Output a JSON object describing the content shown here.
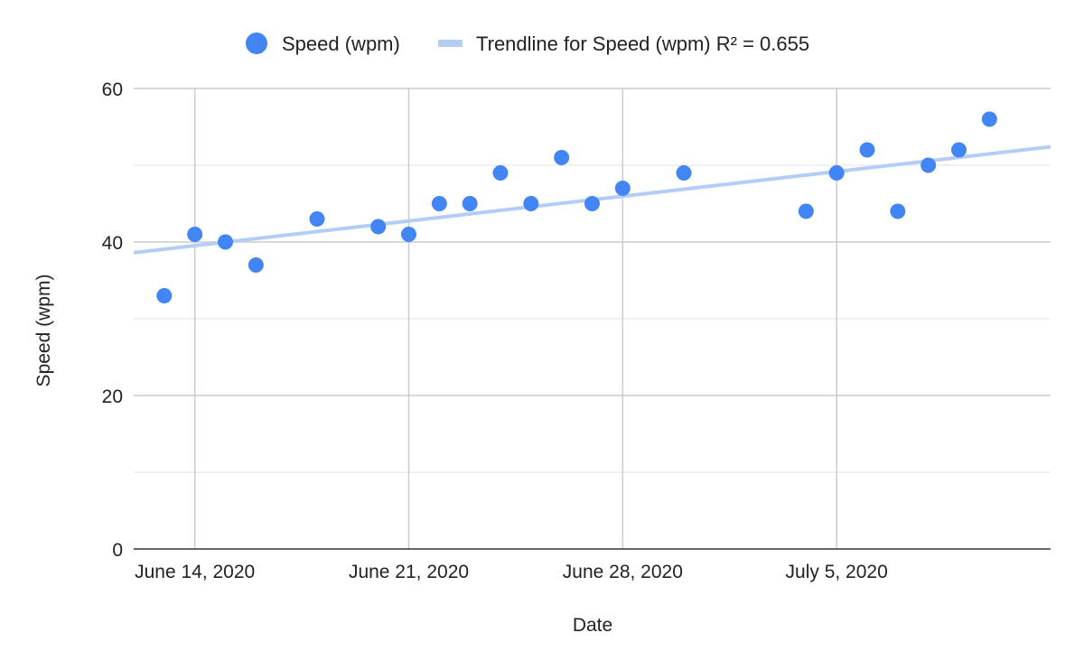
{
  "chart_data": {
    "type": "scatter",
    "xlabel": "Date",
    "ylabel": "Speed (wpm)",
    "ylim": [
      0,
      60
    ],
    "yticks": [
      0,
      20,
      40,
      60
    ],
    "xlim": [
      "2020-06-12",
      "2020-07-12"
    ],
    "xticks": [
      {
        "date": "2020-06-14",
        "label": "June 14, 2020"
      },
      {
        "date": "2020-06-21",
        "label": "June 21, 2020"
      },
      {
        "date": "2020-06-28",
        "label": "June 28, 2020"
      },
      {
        "date": "2020-07-05",
        "label": "July 5, 2020"
      }
    ],
    "grid": true,
    "legend_position": "top",
    "series": [
      {
        "name": "Speed (wpm)",
        "color": "#4285f4",
        "points": [
          {
            "x": "2020-06-13",
            "y": 33
          },
          {
            "x": "2020-06-14",
            "y": 41
          },
          {
            "x": "2020-06-15",
            "y": 40
          },
          {
            "x": "2020-06-16",
            "y": 37
          },
          {
            "x": "2020-06-18",
            "y": 43
          },
          {
            "x": "2020-06-20",
            "y": 42
          },
          {
            "x": "2020-06-21",
            "y": 41
          },
          {
            "x": "2020-06-22",
            "y": 45
          },
          {
            "x": "2020-06-23",
            "y": 45
          },
          {
            "x": "2020-06-24",
            "y": 49
          },
          {
            "x": "2020-06-25",
            "y": 45
          },
          {
            "x": "2020-06-26",
            "y": 51
          },
          {
            "x": "2020-06-27",
            "y": 45
          },
          {
            "x": "2020-06-28",
            "y": 47
          },
          {
            "x": "2020-06-30",
            "y": 49
          },
          {
            "x": "2020-07-04",
            "y": 44
          },
          {
            "x": "2020-07-05",
            "y": 49
          },
          {
            "x": "2020-07-06",
            "y": 52
          },
          {
            "x": "2020-07-07",
            "y": 44
          },
          {
            "x": "2020-07-08",
            "y": 50
          },
          {
            "x": "2020-07-09",
            "y": 52
          },
          {
            "x": "2020-07-10",
            "y": 56
          }
        ]
      }
    ],
    "trendline": {
      "name": "Trendline for Speed (wpm) R² = 0.655",
      "color": "#b4cdf7",
      "start": {
        "x": "2020-06-12",
        "y": 38.6
      },
      "end": {
        "x": "2020-07-12",
        "y": 52.4
      }
    }
  }
}
